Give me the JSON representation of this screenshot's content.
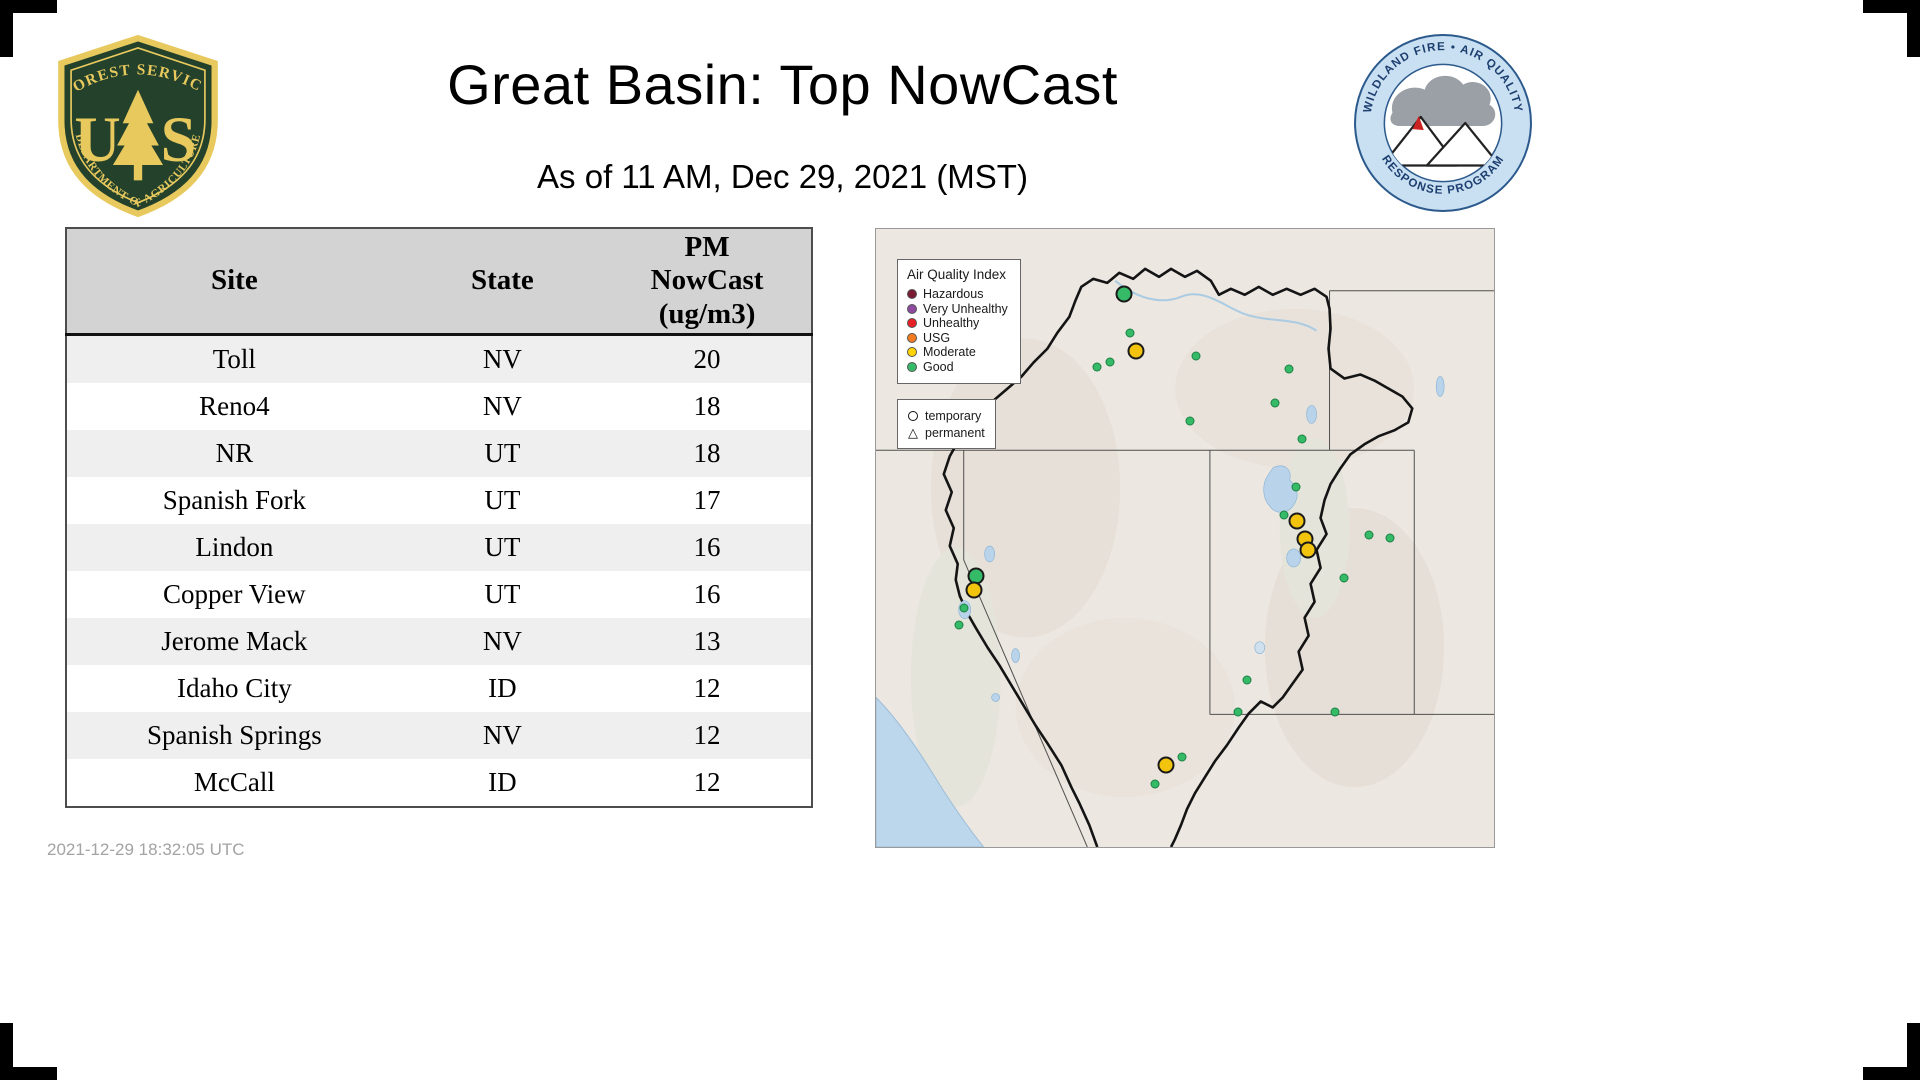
{
  "page": {
    "title": "Great Basin: Top NowCast",
    "subtitle": "As of 11 AM, Dec 29, 2021 (MST)",
    "generated_timestamp": "2021-12-29 18:32:05 UTC"
  },
  "logos": {
    "forest_service": {
      "arc_top": "FOREST SERVICE",
      "letter_left": "U",
      "letter_right": "S",
      "arc_bottom": "DEPARTMENT OF AGRICULTURE",
      "field_color": "#23412b",
      "gold_color": "#e8c95e"
    },
    "wfaqrp": {
      "arc_top": "WILDLAND FIRE • AIR QUALITY",
      "arc_bottom": "RESPONSE PROGRAM",
      "ring_color": "#c9dff2",
      "text_color": "#1d3f70"
    }
  },
  "table": {
    "columns": [
      "Site",
      "State",
      "PM NowCast (ug/m3)"
    ],
    "rows": [
      {
        "site": "Toll",
        "state": "NV",
        "value": "20"
      },
      {
        "site": "Reno4",
        "state": "NV",
        "value": "18"
      },
      {
        "site": "NR",
        "state": "UT",
        "value": "18"
      },
      {
        "site": "Spanish Fork",
        "state": "UT",
        "value": "17"
      },
      {
        "site": "Lindon",
        "state": "UT",
        "value": "16"
      },
      {
        "site": "Copper View",
        "state": "UT",
        "value": "16"
      },
      {
        "site": "Jerome Mack",
        "state": "NV",
        "value": "13"
      },
      {
        "site": "Idaho City",
        "state": "ID",
        "value": "12"
      },
      {
        "site": "Spanish Springs",
        "state": "NV",
        "value": "12"
      },
      {
        "site": "McCall",
        "state": "ID",
        "value": "12"
      }
    ]
  },
  "map": {
    "aqi_legend": {
      "title": "Air Quality Index",
      "items": [
        {
          "label": "Hazardous",
          "color": "#7a1a33"
        },
        {
          "label": "Very Unhealthy",
          "color": "#8d4a9e"
        },
        {
          "label": "Unhealthy",
          "color": "#e81f25"
        },
        {
          "label": "USG",
          "color": "#f47b20"
        },
        {
          "label": "Moderate",
          "color": "#ffd400"
        },
        {
          "label": "Good",
          "color": "#35ba68"
        }
      ]
    },
    "type_legend": {
      "items": [
        {
          "label": "temporary",
          "shape": "circle"
        },
        {
          "label": "permanent",
          "shape": "triangle"
        }
      ]
    },
    "marker_colors": {
      "good": "#35ba68",
      "moderate": "#f2c40d"
    },
    "markers": [
      {
        "x": 40.2,
        "y": 10.5,
        "level": "good",
        "size": "large"
      },
      {
        "x": 41.1,
        "y": 16.9,
        "level": "good",
        "size": "small"
      },
      {
        "x": 42.1,
        "y": 19.7,
        "level": "moderate",
        "size": "large"
      },
      {
        "x": 37.9,
        "y": 21.6,
        "level": "good",
        "size": "small"
      },
      {
        "x": 35.8,
        "y": 22.3,
        "level": "good",
        "size": "small"
      },
      {
        "x": 51.8,
        "y": 20.5,
        "level": "good",
        "size": "small"
      },
      {
        "x": 66.9,
        "y": 22.6,
        "level": "good",
        "size": "small"
      },
      {
        "x": 64.5,
        "y": 28.2,
        "level": "good",
        "size": "small"
      },
      {
        "x": 50.8,
        "y": 31.1,
        "level": "good",
        "size": "small"
      },
      {
        "x": 68.9,
        "y": 34.0,
        "level": "good",
        "size": "small"
      },
      {
        "x": 67.9,
        "y": 41.8,
        "level": "good",
        "size": "small"
      },
      {
        "x": 66.1,
        "y": 46.3,
        "level": "good",
        "size": "small"
      },
      {
        "x": 68.1,
        "y": 47.3,
        "level": "moderate",
        "size": "large"
      },
      {
        "x": 69.4,
        "y": 50.2,
        "level": "moderate",
        "size": "large"
      },
      {
        "x": 69.9,
        "y": 52.0,
        "level": "moderate",
        "size": "large"
      },
      {
        "x": 79.8,
        "y": 49.5,
        "level": "good",
        "size": "small"
      },
      {
        "x": 83.1,
        "y": 50.0,
        "level": "good",
        "size": "small"
      },
      {
        "x": 75.8,
        "y": 56.5,
        "level": "good",
        "size": "small"
      },
      {
        "x": 16.2,
        "y": 56.2,
        "level": "good",
        "size": "large"
      },
      {
        "x": 15.8,
        "y": 58.4,
        "level": "moderate",
        "size": "large"
      },
      {
        "x": 14.2,
        "y": 61.3,
        "level": "good",
        "size": "small"
      },
      {
        "x": 13.4,
        "y": 64.0,
        "level": "good",
        "size": "small"
      },
      {
        "x": 60.0,
        "y": 72.9,
        "level": "good",
        "size": "small"
      },
      {
        "x": 58.5,
        "y": 78.1,
        "level": "good",
        "size": "small"
      },
      {
        "x": 74.2,
        "y": 78.2,
        "level": "good",
        "size": "small"
      },
      {
        "x": 46.9,
        "y": 86.8,
        "level": "moderate",
        "size": "large"
      },
      {
        "x": 49.5,
        "y": 85.5,
        "level": "good",
        "size": "small"
      },
      {
        "x": 45.2,
        "y": 89.8,
        "level": "good",
        "size": "small"
      }
    ]
  },
  "chart_data": {
    "type": "table",
    "title": "Great Basin: Top NowCast",
    "subtitle": "As of 11 AM, Dec 29, 2021 (MST)",
    "columns": [
      "Site",
      "State",
      "PM NowCast (ug/m3)"
    ],
    "rows": [
      [
        "Toll",
        "NV",
        20
      ],
      [
        "Reno4",
        "NV",
        18
      ],
      [
        "NR",
        "UT",
        18
      ],
      [
        "Spanish Fork",
        "UT",
        17
      ],
      [
        "Lindon",
        "UT",
        16
      ],
      [
        "Copper View",
        "UT",
        16
      ],
      [
        "Jerome Mack",
        "NV",
        13
      ],
      [
        "Idaho City",
        "ID",
        12
      ],
      [
        "Spanish Springs",
        "NV",
        12
      ],
      [
        "McCall",
        "ID",
        12
      ]
    ]
  }
}
